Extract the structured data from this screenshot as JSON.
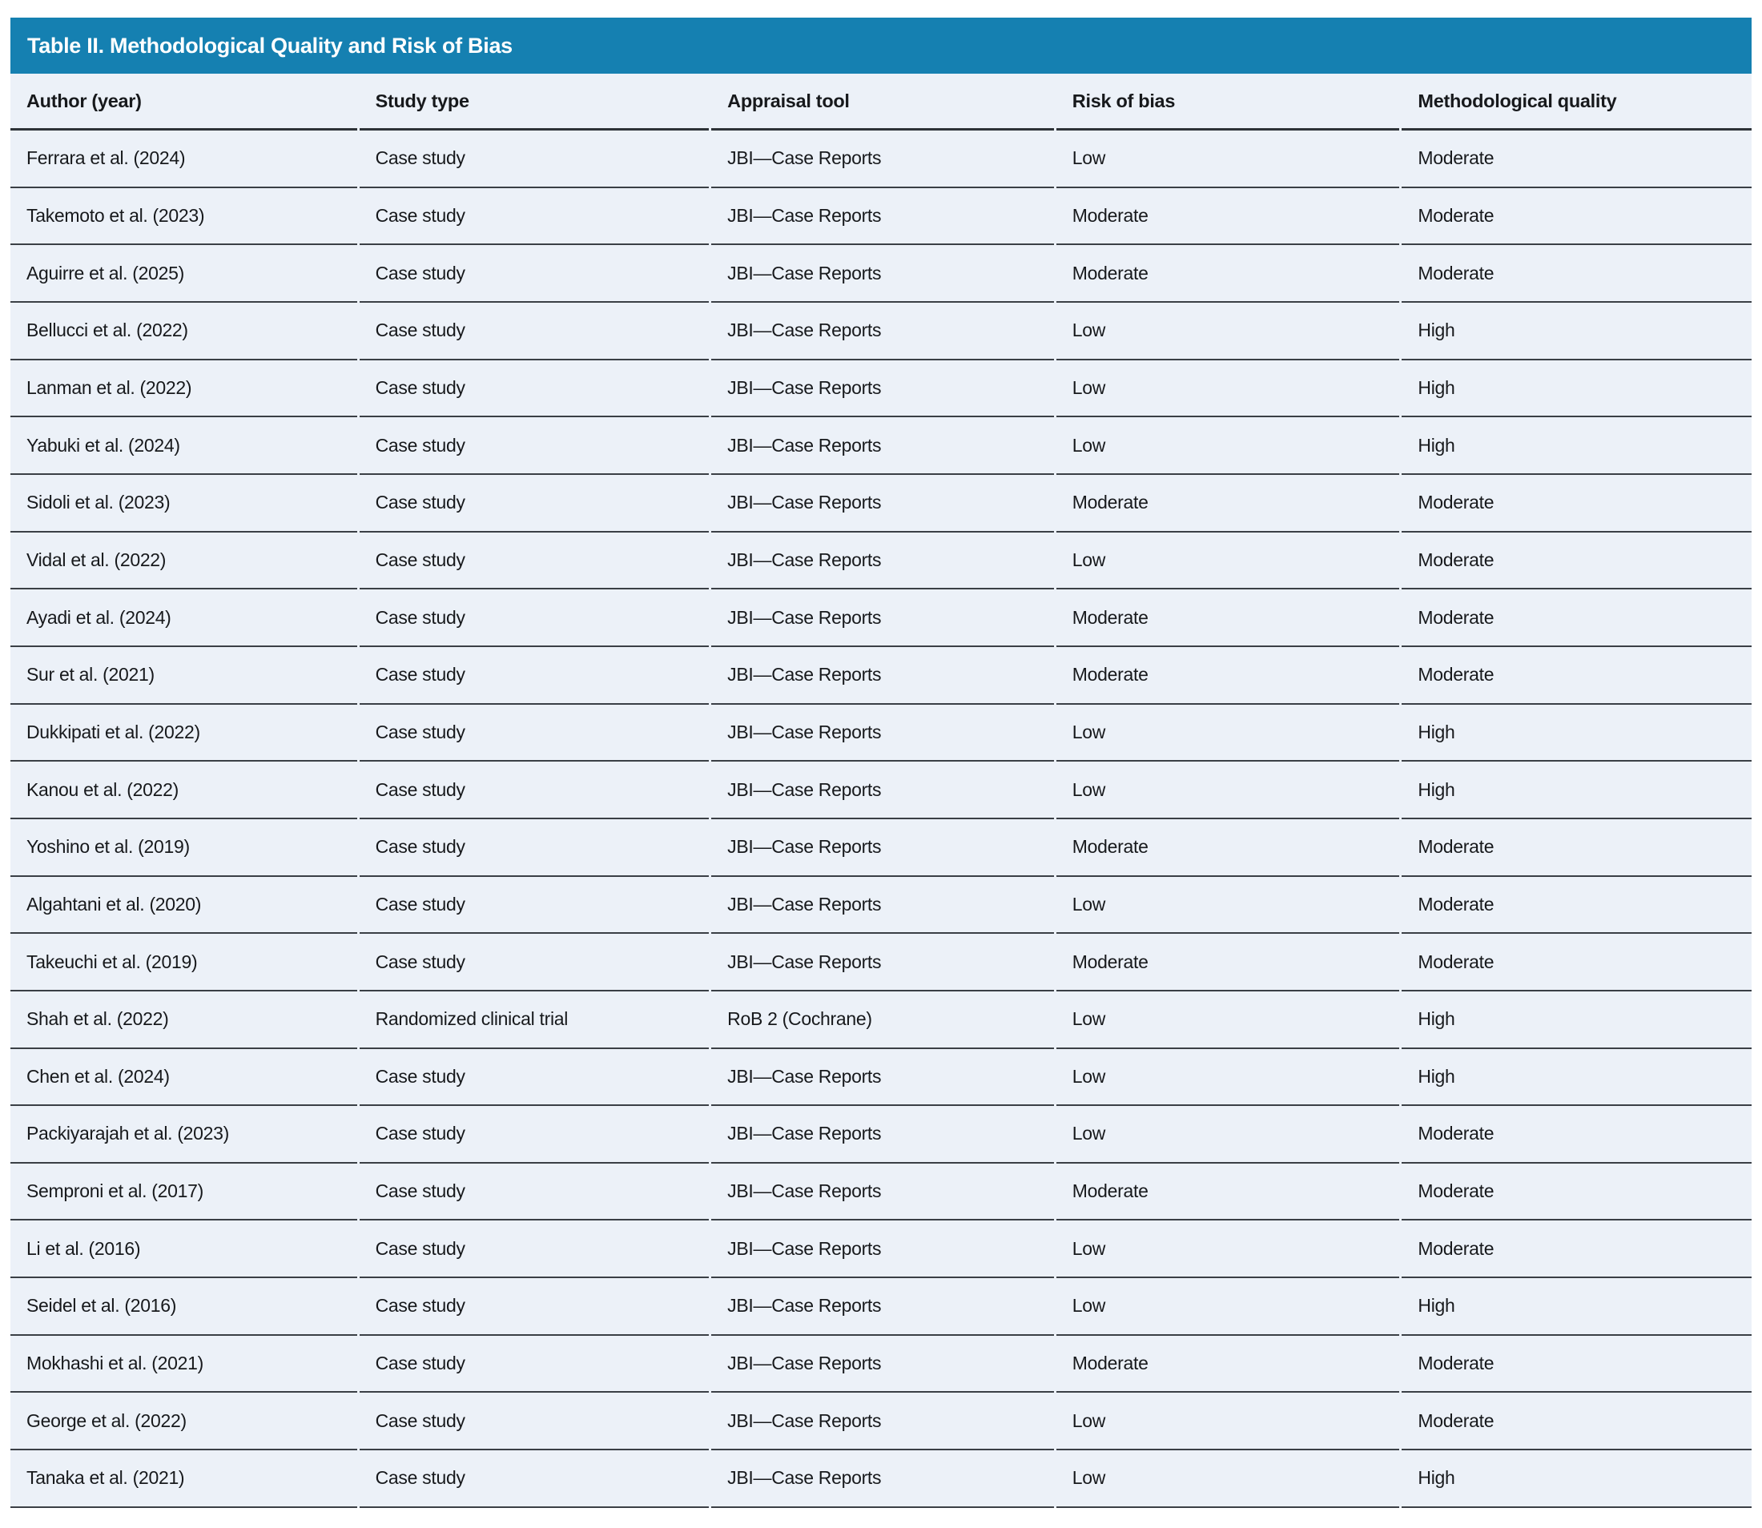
{
  "table": {
    "title": "Table II. Methodological Quality and Risk of Bias",
    "columns": [
      "Author (year)",
      "Study type",
      "Appraisal tool",
      "Risk of bias",
      "Methodological quality"
    ],
    "rows": [
      {
        "author": "Ferrara et al. (2024)",
        "study_type": "Case study",
        "appraisal_tool": "JBI—Case Reports",
        "risk_of_bias": "Low",
        "methodological_quality": "Moderate"
      },
      {
        "author": "Takemoto et al. (2023)",
        "study_type": "Case study",
        "appraisal_tool": "JBI—Case Reports",
        "risk_of_bias": "Moderate",
        "methodological_quality": "Moderate"
      },
      {
        "author": "Aguirre et al. (2025)",
        "study_type": "Case study",
        "appraisal_tool": "JBI—Case Reports",
        "risk_of_bias": "Moderate",
        "methodological_quality": "Moderate"
      },
      {
        "author": "Bellucci et al. (2022)",
        "study_type": "Case study",
        "appraisal_tool": "JBI—Case Reports",
        "risk_of_bias": "Low",
        "methodological_quality": "High"
      },
      {
        "author": "Lanman et al. (2022)",
        "study_type": "Case study",
        "appraisal_tool": "JBI—Case Reports",
        "risk_of_bias": "Low",
        "methodological_quality": "High"
      },
      {
        "author": "Yabuki et al. (2024)",
        "study_type": "Case study",
        "appraisal_tool": "JBI—Case Reports",
        "risk_of_bias": "Low",
        "methodological_quality": "High"
      },
      {
        "author": "Sidoli et al. (2023)",
        "study_type": "Case study",
        "appraisal_tool": "JBI—Case Reports",
        "risk_of_bias": "Moderate",
        "methodological_quality": "Moderate"
      },
      {
        "author": "Vidal et al. (2022)",
        "study_type": "Case study",
        "appraisal_tool": "JBI—Case Reports",
        "risk_of_bias": "Low",
        "methodological_quality": "Moderate"
      },
      {
        "author": "Ayadi et al. (2024)",
        "study_type": "Case study",
        "appraisal_tool": "JBI—Case Reports",
        "risk_of_bias": "Moderate",
        "methodological_quality": "Moderate"
      },
      {
        "author": "Sur et al. (2021)",
        "study_type": "Case study",
        "appraisal_tool": "JBI—Case Reports",
        "risk_of_bias": "Moderate",
        "methodological_quality": "Moderate"
      },
      {
        "author": "Dukkipati et al. (2022)",
        "study_type": "Case study",
        "appraisal_tool": "JBI—Case Reports",
        "risk_of_bias": "Low",
        "methodological_quality": "High"
      },
      {
        "author": "Kanou et al. (2022)",
        "study_type": "Case study",
        "appraisal_tool": "JBI—Case Reports",
        "risk_of_bias": "Low",
        "methodological_quality": "High"
      },
      {
        "author": "Yoshino et al. (2019)",
        "study_type": "Case study",
        "appraisal_tool": "JBI—Case Reports",
        "risk_of_bias": "Moderate",
        "methodological_quality": "Moderate"
      },
      {
        "author": "Algahtani et al. (2020)",
        "study_type": "Case study",
        "appraisal_tool": "JBI—Case Reports",
        "risk_of_bias": "Low",
        "methodological_quality": "Moderate"
      },
      {
        "author": "Takeuchi et al. (2019)",
        "study_type": "Case study",
        "appraisal_tool": "JBI—Case Reports",
        "risk_of_bias": "Moderate",
        "methodological_quality": "Moderate"
      },
      {
        "author": "Shah et al. (2022)",
        "study_type": "Randomized clinical trial",
        "appraisal_tool": "RoB 2 (Cochrane)",
        "risk_of_bias": "Low",
        "methodological_quality": "High"
      },
      {
        "author": "Chen et al. (2024)",
        "study_type": "Case study",
        "appraisal_tool": "JBI—Case Reports",
        "risk_of_bias": "Low",
        "methodological_quality": "High"
      },
      {
        "author": "Packiyarajah et al. (2023)",
        "study_type": "Case study",
        "appraisal_tool": "JBI—Case Reports",
        "risk_of_bias": "Low",
        "methodological_quality": "Moderate"
      },
      {
        "author": "Semproni et al. (2017)",
        "study_type": "Case study",
        "appraisal_tool": "JBI—Case Reports",
        "risk_of_bias": "Moderate",
        "methodological_quality": "Moderate"
      },
      {
        "author": "Li et al. (2016)",
        "study_type": "Case study",
        "appraisal_tool": "JBI—Case Reports",
        "risk_of_bias": "Low",
        "methodological_quality": "Moderate"
      },
      {
        "author": "Seidel et al. (2016)",
        "study_type": "Case study",
        "appraisal_tool": "JBI—Case Reports",
        "risk_of_bias": "Low",
        "methodological_quality": "High"
      },
      {
        "author": "Mokhashi et al. (2021)",
        "study_type": "Case study",
        "appraisal_tool": "JBI—Case Reports",
        "risk_of_bias": "Moderate",
        "methodological_quality": "Moderate"
      },
      {
        "author": "George et al. (2022)",
        "study_type": "Case study",
        "appraisal_tool": "JBI—Case Reports",
        "risk_of_bias": "Low",
        "methodological_quality": "Moderate"
      },
      {
        "author": "Tanaka et al. (2021)",
        "study_type": "Case study",
        "appraisal_tool": "JBI—Case Reports",
        "risk_of_bias": "Low",
        "methodological_quality": "High"
      }
    ]
  },
  "colors": {
    "title_bar_background": "#1580B1",
    "row_background": "#ECF1F8",
    "separator_line": "#3A3F45",
    "title_text": "#FFFFFF",
    "body_text": "#17191C"
  }
}
